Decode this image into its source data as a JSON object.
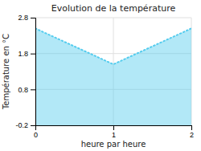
{
  "chart_data": {
    "type": "area",
    "title": "Evolution de la température",
    "xlabel": "heure par heure",
    "ylabel": "Température en °C",
    "x": [
      0,
      1,
      2
    ],
    "values": [
      2.5,
      1.5,
      2.5
    ],
    "xlim": [
      0,
      2
    ],
    "ylim": [
      -0.2,
      2.8
    ],
    "xticks": [
      0,
      1,
      2
    ],
    "yticks": [
      -0.2,
      0.8,
      1.8,
      2.8
    ],
    "color": "#55ccee",
    "line_style": "dotted",
    "grid": true
  }
}
